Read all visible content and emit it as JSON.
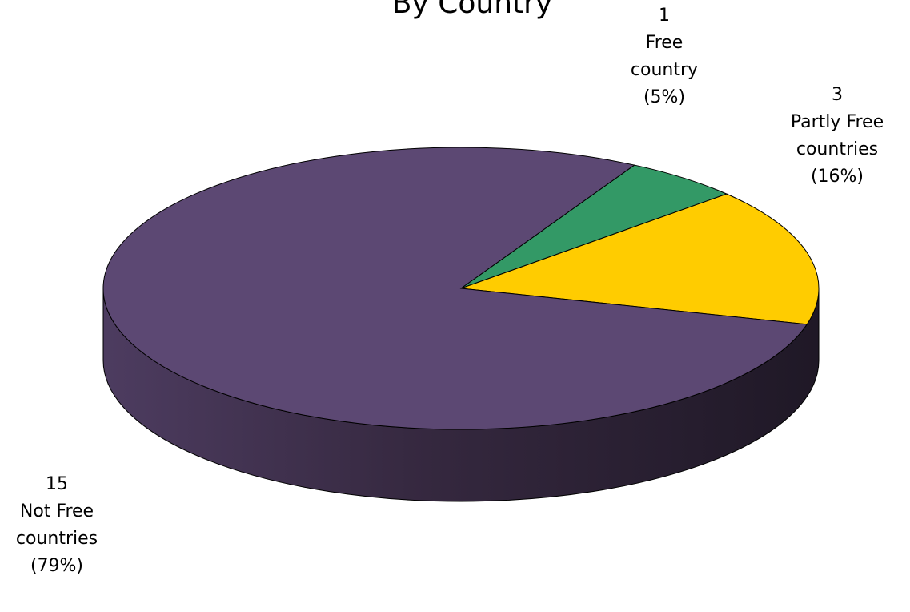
{
  "chart_data": {
    "type": "pie",
    "title": "By Country",
    "slices": [
      {
        "count": "1",
        "category": "Free",
        "noun": "country",
        "percent": "(5%)",
        "value": 1,
        "color": "#339966"
      },
      {
        "count": "3",
        "category": "Partly Free",
        "noun": "countries",
        "percent": "(16%)",
        "value": 3,
        "color": "#ffcc00"
      },
      {
        "count": "15",
        "category": "Not Free",
        "noun": "countries",
        "percent": "(79%)",
        "value": 15,
        "color": "#5c4873"
      }
    ]
  }
}
